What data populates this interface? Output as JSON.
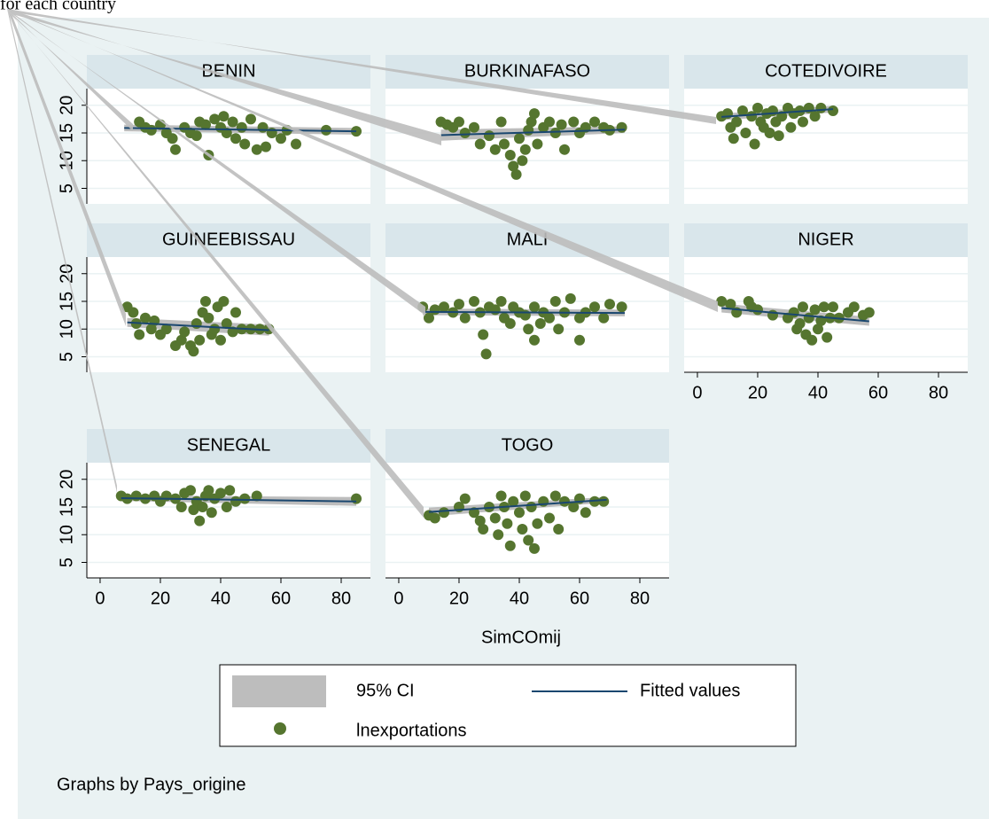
{
  "chart_data": {
    "type": "scatter",
    "header": "for each country",
    "x_label": "SimCOmij",
    "note": "Graphs by Pays_origine",
    "xlim": [
      -4.4,
      89.7
    ],
    "xticks": [
      0,
      20,
      40,
      60,
      80
    ],
    "ylim": [
      2.2,
      23
    ],
    "yticks": [
      5,
      10,
      15,
      20
    ],
    "grid": true,
    "series": [
      {
        "name": "95% CI",
        "color": "#bdbdbd"
      },
      {
        "name": "Fitted values",
        "color": "#1a476f"
      },
      {
        "name": "lnexportations",
        "color": "#55752f"
      }
    ],
    "panels": [
      {
        "title": "BENIN",
        "x": [
          13,
          15,
          17,
          20,
          22,
          24,
          25,
          28,
          30,
          32,
          33,
          35,
          36,
          38,
          40,
          41,
          42,
          44,
          45,
          47,
          48,
          50,
          52,
          54,
          55,
          57,
          60,
          62,
          65,
          75,
          85
        ],
        "values": [
          17,
          16,
          15.5,
          16.5,
          15,
          14,
          12,
          16,
          15,
          14.5,
          17,
          16.5,
          11,
          17.5,
          16,
          18,
          15,
          17,
          14,
          16,
          13,
          17.5,
          12,
          16,
          12.5,
          15,
          14,
          15.5,
          13,
          15.5,
          15.3
        ],
        "fit_x": [
          8,
          85
        ],
        "fit_y": [
          15.9,
          15.3
        ],
        "ci_lower": [
          15.3,
          14.7
        ],
        "ci_upper": [
          16.5,
          15.9
        ]
      },
      {
        "title": "BURKINAFASO",
        "x": [
          14,
          16,
          18,
          20,
          22,
          25,
          27,
          30,
          32,
          34,
          35,
          37,
          38,
          39,
          40,
          41,
          42,
          43,
          44,
          45,
          46,
          48,
          50,
          52,
          54,
          55,
          58,
          60,
          62,
          65,
          68,
          70,
          74
        ],
        "values": [
          17,
          16.5,
          16,
          17,
          15,
          16,
          13,
          14.5,
          12,
          17,
          13,
          11,
          9,
          7.5,
          14,
          10,
          12,
          15.5,
          17,
          18.5,
          13,
          16,
          17,
          15,
          16.5,
          12,
          17,
          15,
          16,
          17,
          16,
          15.5,
          16
        ],
        "fit_x": [
          14,
          75
        ],
        "fit_y": [
          14.6,
          15.6
        ],
        "ci_lower": [
          13.6,
          15.0
        ],
        "ci_upper": [
          15.6,
          16.2
        ]
      },
      {
        "title": "COTEDIVOIRE",
        "x": [
          8,
          10,
          11,
          12,
          13,
          15,
          16,
          18,
          19,
          20,
          21,
          22,
          23,
          24,
          25,
          26,
          27,
          28,
          30,
          31,
          32,
          34,
          35,
          37,
          39,
          41,
          45
        ],
        "values": [
          18,
          18.5,
          16,
          14,
          17,
          19,
          15,
          18,
          13,
          19.5,
          17,
          16,
          18.5,
          15,
          19,
          17,
          14.5,
          18,
          19.5,
          16,
          18.5,
          19,
          17,
          19.5,
          18,
          19.5,
          19
        ],
        "fit_x": [
          8,
          45
        ],
        "fit_y": [
          17.9,
          19.3
        ],
        "ci_lower": [
          17.3,
          18.7
        ],
        "ci_upper": [
          18.5,
          19.9
        ]
      },
      {
        "title": "GUINEEBISSAU",
        "x": [
          9,
          11,
          12,
          13,
          15,
          17,
          18,
          20,
          22,
          25,
          27,
          28,
          30,
          31,
          32,
          33,
          34,
          35,
          36,
          37,
          38,
          39,
          40,
          41,
          42,
          44,
          45,
          47,
          50,
          53,
          56
        ],
        "values": [
          14,
          13,
          11,
          9,
          12,
          10,
          11.5,
          9,
          10,
          7,
          8,
          9.5,
          7,
          6,
          11,
          8,
          13,
          15,
          12,
          9,
          10,
          14,
          8,
          15,
          11,
          9.5,
          13,
          10,
          10,
          10,
          10
        ],
        "fit_x": [
          9,
          56
        ],
        "fit_y": [
          11.2,
          9.8
        ],
        "ci_lower": [
          10.4,
          8.8
        ],
        "ci_upper": [
          12.0,
          10.8
        ]
      },
      {
        "title": "MALI",
        "x": [
          8,
          10,
          12,
          15,
          18,
          20,
          22,
          25,
          27,
          28,
          30,
          32,
          34,
          35,
          37,
          38,
          40,
          42,
          43,
          45,
          47,
          48,
          50,
          52,
          53,
          55,
          57,
          60,
          62,
          65,
          68,
          70,
          74,
          29,
          45,
          60
        ],
        "values": [
          14,
          12,
          13.5,
          14,
          13,
          14.5,
          12,
          15,
          13,
          9,
          14,
          13.5,
          15,
          12,
          11,
          14,
          13,
          12.5,
          10,
          14,
          11,
          13,
          12,
          15,
          10,
          13,
          15.5,
          12,
          13,
          14,
          12,
          14.5,
          14,
          5.5,
          8,
          8
        ],
        "fit_x": [
          8,
          75
        ],
        "fit_y": [
          13.1,
          12.9
        ],
        "ci_lower": [
          12.5,
          12.3
        ],
        "ci_upper": [
          13.7,
          13.5
        ]
      },
      {
        "title": "NIGER",
        "x": [
          8,
          11,
          13,
          17,
          18,
          20,
          25,
          30,
          32,
          33,
          34,
          35,
          36,
          37,
          38,
          39,
          40,
          41,
          42,
          43,
          44,
          45,
          47,
          50,
          52,
          55,
          57
        ],
        "values": [
          15,
          14.5,
          13,
          15,
          14,
          13.5,
          12.5,
          12,
          13,
          10,
          11,
          14,
          9,
          12,
          8,
          13.5,
          10,
          11.5,
          14,
          8.5,
          12,
          14,
          12,
          13,
          14,
          12.5,
          13
        ],
        "fit_x": [
          8,
          57
        ],
        "fit_y": [
          13.8,
          11.4
        ],
        "ci_lower": [
          13.0,
          10.6
        ],
        "ci_upper": [
          14.6,
          12.2
        ]
      },
      {
        "title": "SENEGAL",
        "x": [
          7,
          9,
          12,
          15,
          18,
          20,
          22,
          25,
          27,
          28,
          30,
          31,
          32,
          33,
          34,
          35,
          36,
          37,
          38,
          40,
          42,
          43,
          45,
          48,
          52,
          85
        ],
        "values": [
          17,
          16.5,
          17,
          16.5,
          17,
          16,
          17,
          16.5,
          15,
          17.5,
          18,
          14.5,
          16,
          12.5,
          15,
          17,
          18,
          14,
          16.5,
          17.5,
          15,
          18,
          16,
          16.5,
          17,
          16.5
        ],
        "fit_x": [
          7,
          85
        ],
        "fit_y": [
          16.6,
          16.0
        ],
        "ci_lower": [
          16.1,
          15.2
        ],
        "ci_upper": [
          17.1,
          16.8
        ]
      },
      {
        "title": "TOGO",
        "x": [
          10,
          12,
          15,
          20,
          22,
          25,
          27,
          28,
          30,
          32,
          33,
          34,
          35,
          36,
          37,
          38,
          40,
          41,
          42,
          43,
          44,
          45,
          46,
          48,
          50,
          52,
          53,
          55,
          58,
          60,
          62,
          65,
          68
        ],
        "values": [
          13.5,
          13,
          14,
          15,
          16.5,
          14,
          12.5,
          11,
          15,
          13,
          10,
          17,
          15,
          12,
          8,
          16,
          14,
          11,
          17,
          9,
          15,
          7.5,
          12,
          16,
          13,
          17,
          11,
          16,
          15,
          16.5,
          14,
          16,
          16
        ],
        "fit_x": [
          10,
          69
        ],
        "fit_y": [
          14.1,
          16.3
        ],
        "ci_lower": [
          13.3,
          15.8
        ],
        "ci_upper": [
          14.9,
          16.8
        ]
      }
    ]
  }
}
